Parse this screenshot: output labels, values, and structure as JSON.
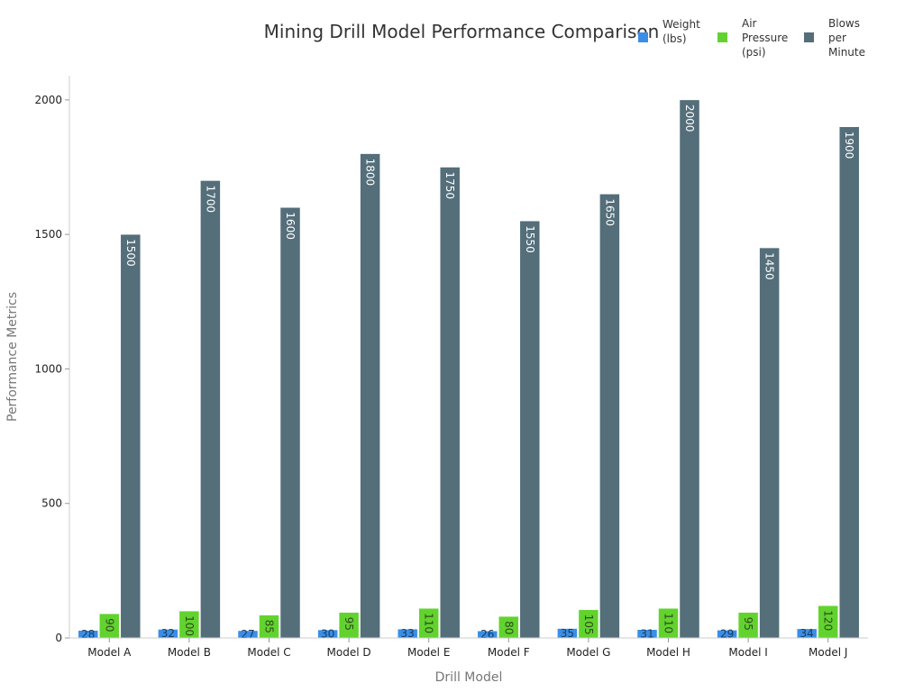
{
  "chart_data": {
    "type": "bar",
    "title": "Mining Drill Model Performance Comparison",
    "xlabel": "Drill Model",
    "ylabel": "Performance Metrics",
    "categories": [
      "Model A",
      "Model B",
      "Model C",
      "Model D",
      "Model E",
      "Model F",
      "Model G",
      "Model H",
      "Model I",
      "Model J"
    ],
    "series": [
      {
        "name": "Weight (lbs)",
        "color": "#3a8ee6",
        "label_color": "#1a3a5c",
        "values": [
          28,
          32,
          27,
          30,
          33,
          26,
          35,
          31,
          29,
          34
        ]
      },
      {
        "name": "Air Pressure (psi)",
        "color": "#62d32e",
        "label_color": "#2f4a1f",
        "values": [
          90,
          100,
          85,
          95,
          110,
          80,
          105,
          110,
          95,
          120
        ]
      },
      {
        "name": "Blows per Minute",
        "color": "#546e7a",
        "label_color": "#ffffff",
        "values": [
          1500,
          1700,
          1600,
          1800,
          1750,
          1550,
          1650,
          2000,
          1450,
          1900
        ]
      }
    ],
    "ylim": [
      0,
      2090
    ],
    "yticks": [
      0,
      500,
      1000,
      1500,
      2000
    ],
    "grid": false,
    "legend": "top-right"
  }
}
